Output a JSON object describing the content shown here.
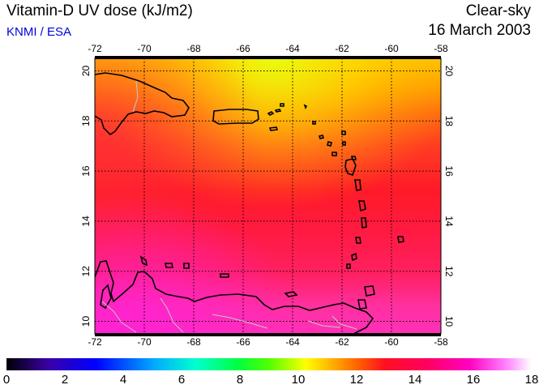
{
  "header": {
    "title": "Vitamin-D UV dose (kJ/m2)",
    "source": "KNMI / ESA",
    "condition": "Clear-sky",
    "date": "16 March 2003"
  },
  "map": {
    "lon_ticks": [
      "-72",
      "-70",
      "-68",
      "-66",
      "-64",
      "-62",
      "-60",
      "-58"
    ],
    "lat_ticks": [
      "20",
      "18",
      "16",
      "14",
      "12",
      "10"
    ],
    "lon_range": [
      -72,
      -58
    ],
    "lat_range": [
      9.5,
      20.5
    ],
    "grid": true
  },
  "colorbar": {
    "labels": [
      "0",
      "2",
      "4",
      "6",
      "8",
      "10",
      "12",
      "14",
      "16",
      "18"
    ],
    "range": [
      0,
      18
    ],
    "colors": [
      "#000000",
      "#3a00a8",
      "#0000ff",
      "#00a8ff",
      "#00ffd0",
      "#00ff40",
      "#50ff00",
      "#ffff00",
      "#ffb000",
      "#ff6000",
      "#ff1020",
      "#ff0060",
      "#ff00c0",
      "#ff80ff",
      "#ffffff"
    ]
  }
}
